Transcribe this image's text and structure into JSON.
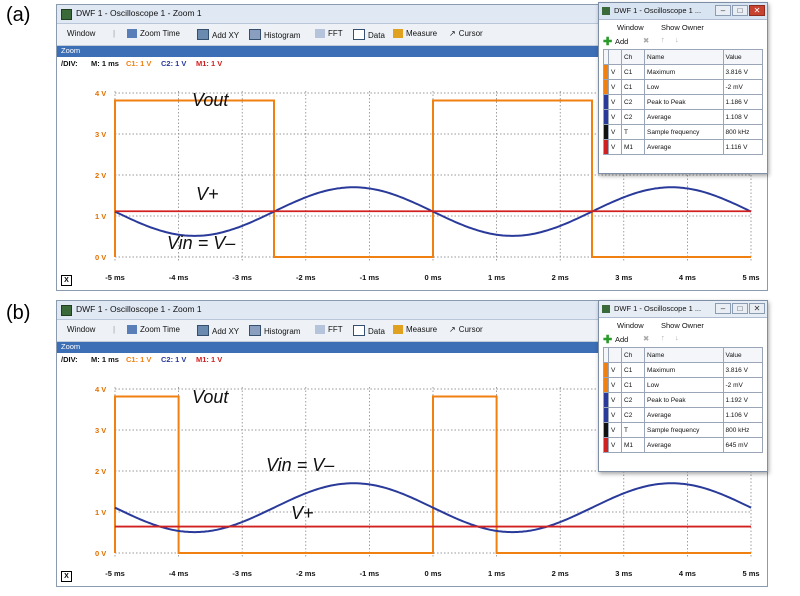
{
  "panels": [
    {
      "label": "(a)",
      "window_title": "DWF 1 - Oscilloscope 1 - Zoom 1",
      "toolbar": [
        "Window",
        "Zoom Time",
        "Add XY",
        "Histogram",
        "FFT",
        "Data",
        "Measure",
        "Cursor"
      ],
      "zoom_header": "Zoom",
      "div_label": "/DIV:",
      "div_m": "M: 1 ms",
      "div_c1": "C1: 1 V",
      "div_c2": "C2: 1 V",
      "div_m1": "M1: 1 V",
      "close_label": "X",
      "annotations": {
        "vout": "Vout",
        "vplus": "V+",
        "vin": "Vin = V–"
      },
      "measure": {
        "title": "DWF 1 - Oscilloscope 1 ...",
        "menu": [
          "Window",
          "Show Owner"
        ],
        "add_label": "Add",
        "headers": [
          "Ch",
          "Name",
          "Value"
        ],
        "rows": [
          {
            "v": "V",
            "ch": "C1",
            "name": "Maximum",
            "value": "3.816 V",
            "color": "#f08010"
          },
          {
            "v": "V",
            "ch": "C1",
            "name": "Low",
            "value": "-2 mV",
            "color": "#f08010"
          },
          {
            "v": "V",
            "ch": "C2",
            "name": "Peak to Peak",
            "value": "1.186 V",
            "color": "#2a3a9a"
          },
          {
            "v": "V",
            "ch": "C2",
            "name": "Average",
            "value": "1.108 V",
            "color": "#2a3a9a"
          },
          {
            "v": "V",
            "ch": "T",
            "name": "Sample frequency",
            "value": "800 kHz",
            "color": "#111111"
          },
          {
            "v": "V",
            "ch": "M1",
            "name": "Average",
            "value": "1.116 V",
            "color": "#d02020"
          }
        ]
      },
      "chart_data": {
        "type": "line",
        "x_unit": "ms",
        "xlim": [
          -5,
          5
        ],
        "ylim": [
          0,
          4
        ],
        "x_ticks": [
          "-5 ms",
          "-4 ms",
          "-3 ms",
          "-2 ms",
          "-1 ms",
          "0 ms",
          "1 ms",
          "2 ms",
          "3 ms",
          "4 ms",
          "5 ms"
        ],
        "y_ticks": [
          "0 V",
          "1 V",
          "2 V",
          "3 V",
          "4 V"
        ],
        "grid": true,
        "series": [
          {
            "name": "C1",
            "color": "#f08010",
            "kind": "square",
            "low": 0,
            "high": 3.816,
            "high_intervals": [
              [
                -5,
                -2.5
              ],
              [
                0,
                2.5
              ]
            ]
          },
          {
            "name": "C2",
            "color": "#2a3a9a",
            "kind": "sine",
            "offset": 1.108,
            "amplitude": 0.593,
            "period_ms": 5,
            "phase_ms": 0,
            "sign": -1
          },
          {
            "name": "M1",
            "color": "#d02020",
            "kind": "flat",
            "value": 1.116
          }
        ]
      }
    },
    {
      "label": "(b)",
      "window_title": "DWF 1 - Oscilloscope 1 - Zoom 1",
      "toolbar": [
        "Window",
        "Zoom Time",
        "Add XY",
        "Histogram",
        "FFT",
        "Data",
        "Measure",
        "Cursor"
      ],
      "zoom_header": "Zoom",
      "div_label": "/DIV:",
      "div_m": "M: 1 ms",
      "div_c1": "C1: 1 V",
      "div_c2": "C2: 1 V",
      "div_m1": "M1: 1 V",
      "close_label": "X",
      "annotations": {
        "vout": "Vout",
        "vplus": "V+",
        "vin": "Vin = V–"
      },
      "measure": {
        "title": "DWF 1 - Oscilloscope 1 ...",
        "menu": [
          "Window",
          "Show Owner"
        ],
        "add_label": "Add",
        "headers": [
          "Ch",
          "Name",
          "Value"
        ],
        "rows": [
          {
            "v": "V",
            "ch": "C1",
            "name": "Maximum",
            "value": "3.816 V",
            "color": "#f08010"
          },
          {
            "v": "V",
            "ch": "C1",
            "name": "Low",
            "value": "-2 mV",
            "color": "#f08010"
          },
          {
            "v": "V",
            "ch": "C2",
            "name": "Peak to Peak",
            "value": "1.192 V",
            "color": "#2a3a9a"
          },
          {
            "v": "V",
            "ch": "C2",
            "name": "Average",
            "value": "1.106 V",
            "color": "#2a3a9a"
          },
          {
            "v": "V",
            "ch": "T",
            "name": "Sample frequency",
            "value": "800 kHz",
            "color": "#111111"
          },
          {
            "v": "V",
            "ch": "M1",
            "name": "Average",
            "value": "645 mV",
            "color": "#d02020"
          }
        ]
      },
      "chart_data": {
        "type": "line",
        "x_unit": "ms",
        "xlim": [
          -5,
          5
        ],
        "ylim": [
          0,
          4
        ],
        "x_ticks": [
          "-5 ms",
          "-4 ms",
          "-3 ms",
          "-2 ms",
          "-1 ms",
          "0 ms",
          "1 ms",
          "2 ms",
          "3 ms",
          "4 ms",
          "5 ms"
        ],
        "y_ticks": [
          "0 V",
          "1 V",
          "2 V",
          "3 V",
          "4 V"
        ],
        "grid": true,
        "series": [
          {
            "name": "C1",
            "color": "#f08010",
            "kind": "square",
            "low": 0,
            "high": 3.816,
            "high_intervals": [
              [
                -5,
                -4
              ],
              [
                0,
                1
              ]
            ]
          },
          {
            "name": "C2",
            "color": "#2a3a9a",
            "kind": "sine",
            "offset": 1.106,
            "amplitude": 0.596,
            "period_ms": 5,
            "phase_ms": 0,
            "sign": -1
          },
          {
            "name": "M1",
            "color": "#d02020",
            "kind": "flat",
            "value": 0.645
          }
        ]
      }
    }
  ]
}
